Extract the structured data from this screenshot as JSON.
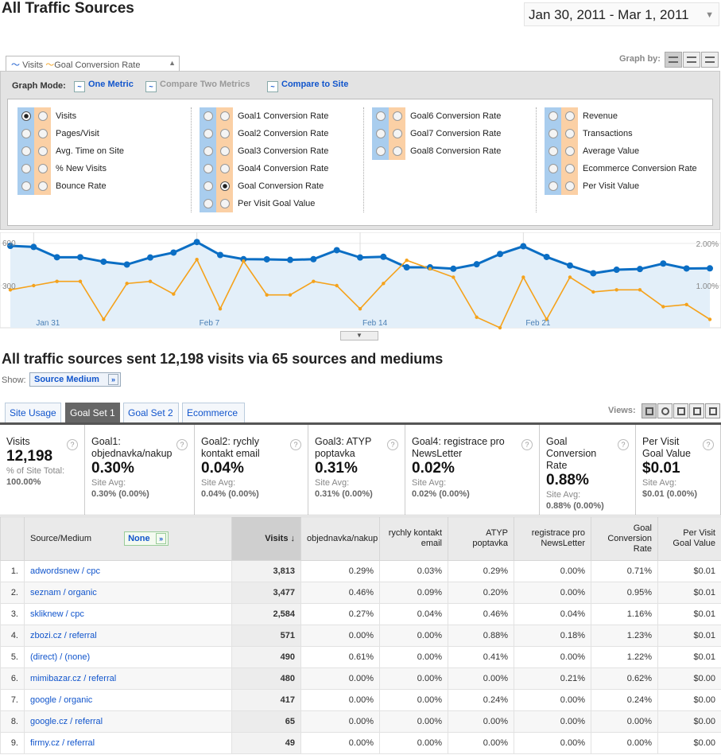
{
  "page": {
    "title": "All Traffic Sources",
    "date_range": "Jan 30, 2011 - Mar 1, 2011"
  },
  "graph": {
    "tab_metric1": "Visits",
    "tab_metric2": "Goal Conversion Rate",
    "graph_by_label": "Graph by:",
    "mode_label": "Graph Mode:",
    "mode_options": [
      "One Metric",
      "Compare Two Metrics",
      "Compare to Site"
    ]
  },
  "metrics": {
    "col1": [
      "Visits",
      "Pages/Visit",
      "Avg. Time on Site",
      "% New Visits",
      "Bounce Rate"
    ],
    "col2": [
      "Goal1 Conversion Rate",
      "Goal2 Conversion Rate",
      "Goal3 Conversion Rate",
      "Goal4 Conversion Rate",
      "Goal Conversion Rate",
      "Per Visit Goal Value"
    ],
    "col3": [
      "Goal6 Conversion Rate",
      "Goal7 Conversion Rate",
      "Goal8 Conversion Rate"
    ],
    "col4": [
      "Revenue",
      "Transactions",
      "Average Value",
      "Ecommerce Conversion Rate",
      "Per Visit Value"
    ]
  },
  "chart_data": {
    "type": "line",
    "left_axis": {
      "ticks": [
        "600",
        "300"
      ],
      "ylim": [
        0,
        600
      ]
    },
    "right_axis": {
      "ticks": [
        "2.00%",
        "1.00%"
      ],
      "ylim": [
        0,
        2
      ]
    },
    "x_labels": [
      "Jan 31",
      "Feb 7",
      "Feb 14",
      "Feb 21"
    ],
    "series": [
      {
        "color": "#0b6ec4",
        "fill": true,
        "values": [
          583,
          575,
          502,
          502,
          470,
          450,
          500,
          535,
          610,
          518,
          488,
          487,
          483,
          488,
          552,
          500,
          505,
          430,
          430,
          420,
          452,
          525,
          580,
          504,
          443,
          388,
          413,
          418,
          457,
          422,
          423
        ]
      },
      {
        "color": "#f5a21b",
        "values": [
          0.9,
          1.0,
          1.1,
          1.1,
          0.2,
          1.05,
          1.1,
          0.8,
          1.62,
          0.45,
          1.58,
          0.78,
          0.78,
          1.1,
          1.0,
          0.45,
          1.05,
          1.6,
          1.4,
          1.2,
          0.25,
          0.0,
          1.2,
          0.2,
          1.2,
          0.85,
          0.9,
          0.9,
          0.5,
          0.55,
          0.2
        ]
      }
    ]
  },
  "summary": {
    "heading": "All traffic sources sent 12,198 visits via 65 sources and mediums",
    "show_label": "Show:",
    "show_value": "Source Medium"
  },
  "tabs": [
    "Site Usage",
    "Goal Set 1",
    "Goal Set 2",
    "Ecommerce"
  ],
  "views_label": "Views:",
  "scorecard": [
    {
      "title": "Visits",
      "value": "12,198",
      "sub1": "% of Site Total:",
      "sub2": "100.00%"
    },
    {
      "title": "Goal1: objednavka/nakup",
      "value": "0.30%",
      "sub1": "Site Avg:",
      "sub2": "0.30% (0.00%)"
    },
    {
      "title": "Goal2: rychly kontakt email",
      "value": "0.04%",
      "sub1": "Site Avg:",
      "sub2": "0.04% (0.00%)"
    },
    {
      "title": "Goal3: ATYP poptavka",
      "value": "0.31%",
      "sub1": "Site Avg:",
      "sub2": "0.31% (0.00%)"
    },
    {
      "title": "Goal4: registrace pro NewsLetter",
      "value": "0.02%",
      "sub1": "Site Avg:",
      "sub2": "0.02% (0.00%)"
    },
    {
      "title": "Goal Conversion Rate",
      "value": "0.88%",
      "sub1": "Site Avg:",
      "sub2": "0.88% (0.00%)"
    },
    {
      "title": "Per Visit Goal Value",
      "value": "$0.01",
      "sub1": "Site Avg:",
      "sub2": "$0.01 (0.00%)"
    }
  ],
  "table": {
    "headers": {
      "source": "Source/Medium",
      "dimension": "None",
      "visits": "Visits",
      "g1": "objednavka/nakup",
      "g2": "rychly kontakt email",
      "g3": "ATYP poptavka",
      "g4": "registrace pro NewsLetter",
      "gcr": "Goal Conversion Rate",
      "pvgv": "Per Visit Goal Value"
    },
    "rows": [
      {
        "n": "1.",
        "source": "adwordsnew / cpc",
        "visits": "3,813",
        "g1": "0.29%",
        "g2": "0.03%",
        "g3": "0.29%",
        "g4": "0.00%",
        "gcr": "0.71%",
        "pvgv": "$0.01"
      },
      {
        "n": "2.",
        "source": "seznam / organic",
        "visits": "3,477",
        "g1": "0.46%",
        "g2": "0.09%",
        "g3": "0.20%",
        "g4": "0.00%",
        "gcr": "0.95%",
        "pvgv": "$0.01"
      },
      {
        "n": "3.",
        "source": "skliknew / cpc",
        "visits": "2,584",
        "g1": "0.27%",
        "g2": "0.04%",
        "g3": "0.46%",
        "g4": "0.04%",
        "gcr": "1.16%",
        "pvgv": "$0.01"
      },
      {
        "n": "4.",
        "source": "zbozi.cz / referral",
        "visits": "571",
        "g1": "0.00%",
        "g2": "0.00%",
        "g3": "0.88%",
        "g4": "0.18%",
        "gcr": "1.23%",
        "pvgv": "$0.01"
      },
      {
        "n": "5.",
        "source": "(direct) / (none)",
        "visits": "490",
        "g1": "0.61%",
        "g2": "0.00%",
        "g3": "0.41%",
        "g4": "0.00%",
        "gcr": "1.22%",
        "pvgv": "$0.01"
      },
      {
        "n": "6.",
        "source": "mimibazar.cz / referral",
        "visits": "480",
        "g1": "0.00%",
        "g2": "0.00%",
        "g3": "0.00%",
        "g4": "0.21%",
        "gcr": "0.62%",
        "pvgv": "$0.00"
      },
      {
        "n": "7.",
        "source": "google / organic",
        "visits": "417",
        "g1": "0.00%",
        "g2": "0.00%",
        "g3": "0.24%",
        "g4": "0.00%",
        "gcr": "0.24%",
        "pvgv": "$0.00"
      },
      {
        "n": "8.",
        "source": "google.cz / referral",
        "visits": "65",
        "g1": "0.00%",
        "g2": "0.00%",
        "g3": "0.00%",
        "g4": "0.00%",
        "gcr": "0.00%",
        "pvgv": "$0.00"
      },
      {
        "n": "9.",
        "source": "firmy.cz / referral",
        "visits": "49",
        "g1": "0.00%",
        "g2": "0.00%",
        "g3": "0.00%",
        "g4": "0.00%",
        "gcr": "0.00%",
        "pvgv": "$0.00"
      }
    ]
  }
}
